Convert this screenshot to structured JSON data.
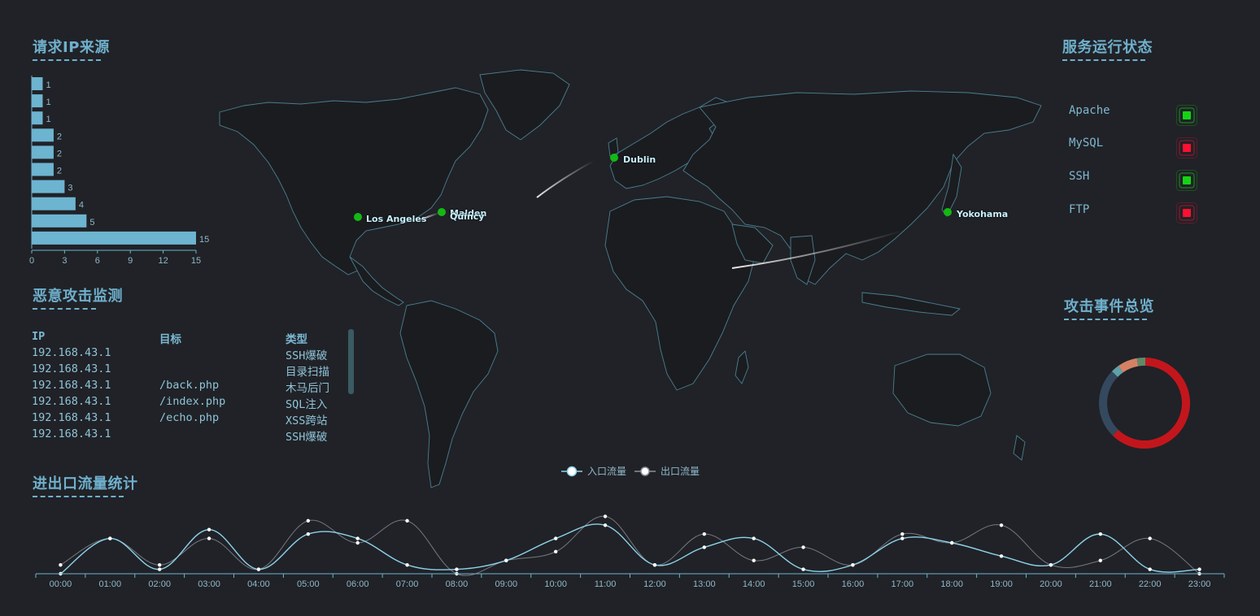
{
  "titles": {
    "ip_source": "请求IP来源",
    "attack_monitor": "恶意攻击监测",
    "traffic": "进出口流量统计",
    "service_status": "服务运行状态",
    "event_overview": "攻击事件总览"
  },
  "ip_source_chart": {
    "type": "bar",
    "orientation": "horizontal",
    "values": [
      1,
      1,
      1,
      2,
      2,
      2,
      3,
      4,
      5,
      15
    ],
    "xlim": [
      0,
      15
    ],
    "xticks": [
      0,
      3,
      6,
      9,
      12,
      15
    ],
    "color": "#6db4d0"
  },
  "attack_monitor": {
    "headers": [
      "IP",
      "目标",
      "类型"
    ],
    "rows": [
      [
        "192.168.43.1",
        "",
        "SSH爆破"
      ],
      [
        "192.168.43.1",
        "",
        "目录扫描"
      ],
      [
        "192.168.43.1",
        "/back.php",
        "木马后门"
      ],
      [
        "192.168.43.1",
        "/index.php",
        "SQL注入"
      ],
      [
        "192.168.43.1",
        "/echo.php",
        "XSS跨站"
      ],
      [
        "192.168.43.1",
        "",
        "SSH爆破"
      ]
    ]
  },
  "map": {
    "cities": [
      "Los Angeles",
      "Malden",
      "Quincy",
      "Dublin",
      "Yokohama"
    ],
    "point_color": "#14b814"
  },
  "services": [
    {
      "name": "Apache",
      "status": "up",
      "color": "#14d414"
    },
    {
      "name": "MySQL",
      "status": "down",
      "color": "#ff1030"
    },
    {
      "name": "SSH",
      "status": "up",
      "color": "#14d414"
    },
    {
      "name": "FTP",
      "status": "down",
      "color": "#ff1030"
    }
  ],
  "event_overview_chart": {
    "type": "pie",
    "style": "donut",
    "slices": [
      {
        "value": 62,
        "color": "#c3161c"
      },
      {
        "value": 25,
        "color": "#34495e"
      },
      {
        "value": 3,
        "color": "#61a0a8"
      },
      {
        "value": 7,
        "color": "#d48265"
      },
      {
        "value": 3,
        "color": "#5f8a6a"
      }
    ]
  },
  "chart_data": {
    "type": "line",
    "x": [
      "00:00",
      "01:00",
      "02:00",
      "03:00",
      "04:00",
      "05:00",
      "06:00",
      "07:00",
      "08:00",
      "09:00",
      "10:00",
      "11:00",
      "12:00",
      "13:00",
      "14:00",
      "15:00",
      "16:00",
      "17:00",
      "18:00",
      "19:00",
      "20:00",
      "21:00",
      "22:00",
      "23:00"
    ],
    "series": [
      {
        "name": "入口流量",
        "values": [
          0,
          8,
          1,
          10,
          1,
          9,
          8,
          2,
          1,
          3,
          8,
          11,
          2,
          6,
          8,
          1,
          2,
          8,
          7,
          4,
          2,
          9,
          1,
          1
        ],
        "color": "#8dd2ea"
      },
      {
        "name": "出口流量",
        "values": [
          2,
          8,
          2,
          8,
          1,
          12,
          7,
          12,
          0,
          3,
          5,
          13,
          2,
          9,
          3,
          6,
          2,
          9,
          7,
          11,
          2,
          3,
          8,
          0
        ],
        "color": "#8b8f99"
      }
    ],
    "ylim": [
      0,
      14
    ],
    "legend": "top-center",
    "grid": false
  }
}
